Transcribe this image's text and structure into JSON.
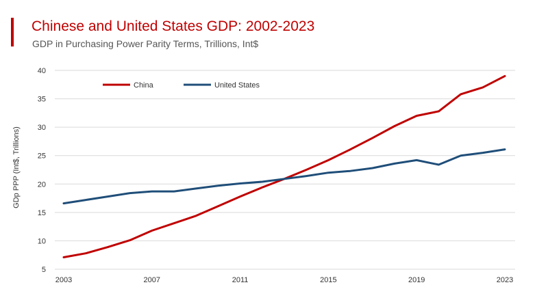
{
  "header": {
    "title": "Chinese and United States GDP: 2002-2023",
    "subtitle": "GDP in Purchasing Power Parity Terms, Trillions, Int$"
  },
  "colors": {
    "accent": "#c00000",
    "china": "#c00000",
    "united_states": "#1f4e79",
    "grid": "#d9d9d9"
  },
  "chart_data": {
    "type": "line",
    "title": "Chinese and United States GDP: 2002-2023",
    "subtitle": "GDP in Purchasing Power Parity Terms, Trillions, Int$",
    "xlabel": "",
    "ylabel": "GDp PPP (Int$, Trillions)",
    "x": [
      2003,
      2004,
      2005,
      2006,
      2007,
      2008,
      2009,
      2010,
      2011,
      2012,
      2013,
      2014,
      2015,
      2016,
      2017,
      2018,
      2019,
      2020,
      2021,
      2022,
      2023
    ],
    "x_tick_labels": [
      "2003",
      "2007",
      "2011",
      "2015",
      "2019",
      "2023"
    ],
    "y_tick_labels": [
      "5",
      "10",
      "15",
      "20",
      "25",
      "30",
      "35",
      "40"
    ],
    "ylim": [
      5,
      40
    ],
    "xlim": [
      2003,
      2023
    ],
    "grid": true,
    "legend_position": "top-left",
    "series": [
      {
        "name": "China",
        "color": "#c00000",
        "values": [
          7.1,
          7.8,
          8.9,
          10.1,
          11.8,
          13.1,
          14.4,
          16.1,
          17.8,
          19.4,
          20.9,
          22.5,
          24.2,
          26.1,
          28.1,
          30.2,
          32.0,
          32.8,
          35.8,
          37.0,
          39.0
        ]
      },
      {
        "name": "United States",
        "color": "#1f4e79",
        "values": [
          16.6,
          17.2,
          17.8,
          18.4,
          18.7,
          18.7,
          19.2,
          19.7,
          20.1,
          20.4,
          20.9,
          21.4,
          22.0,
          22.3,
          22.8,
          23.6,
          24.2,
          23.4,
          25.0,
          25.5,
          26.1
        ]
      }
    ]
  }
}
